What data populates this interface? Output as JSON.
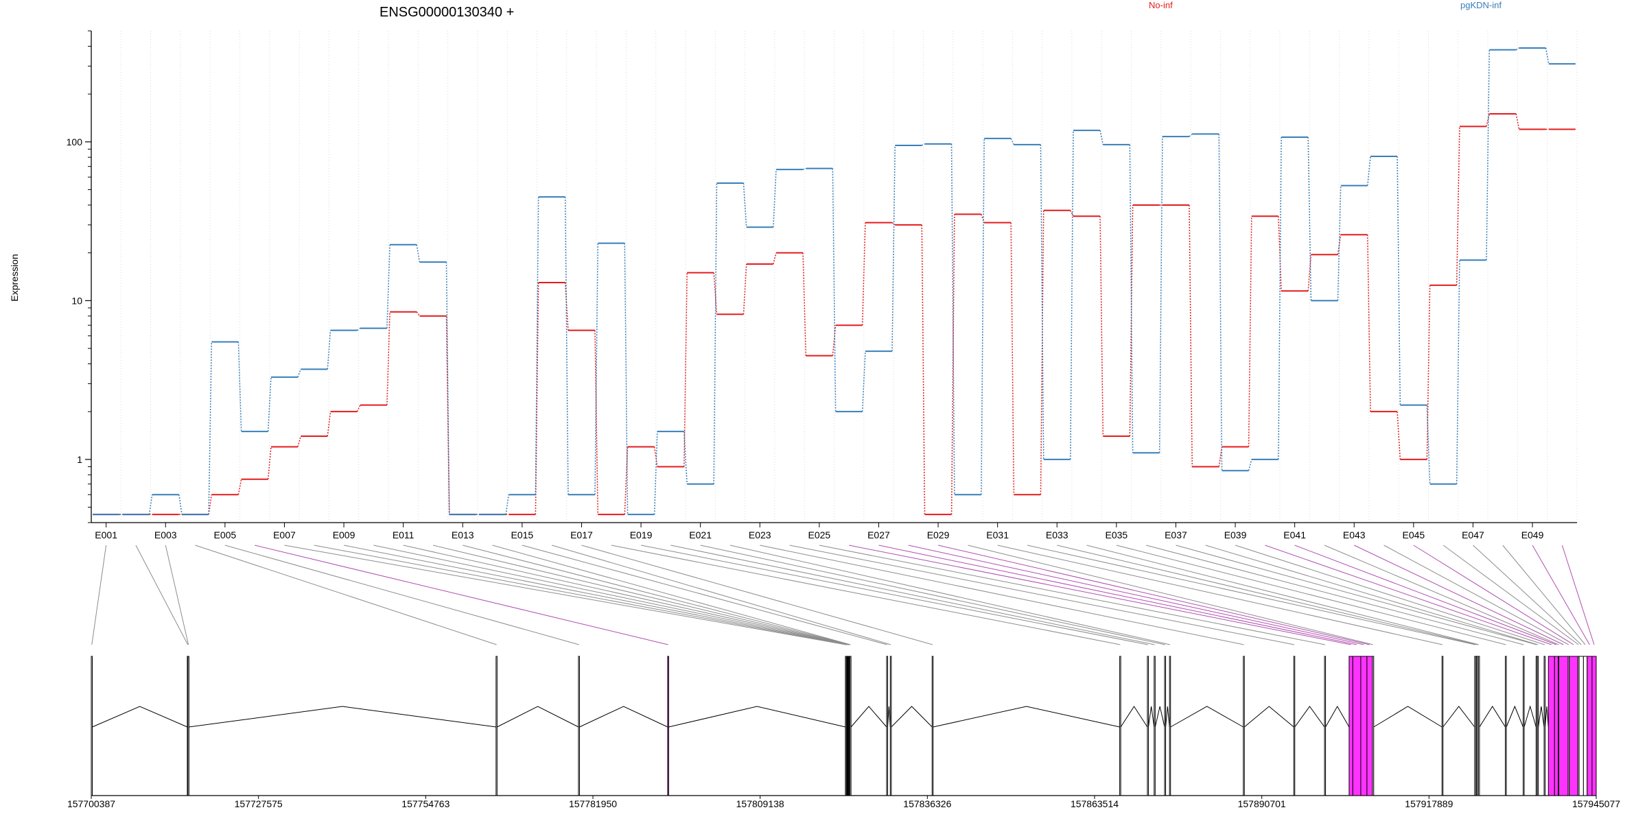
{
  "chart_data": {
    "type": "line",
    "title": "ENSG00000130340 +",
    "ylabel": "Expression",
    "y_scale": "log",
    "ylim": [
      0.4,
      500
    ],
    "y_ticks": [
      1,
      10,
      100
    ],
    "y_tick_labels": [
      "1",
      "10",
      "100"
    ],
    "grid": "vertical dotted lines",
    "legend_placement": "top",
    "categories": [
      "E001",
      "E002",
      "E003",
      "E004",
      "E005",
      "E006",
      "E007",
      "E008",
      "E009",
      "E010",
      "E011",
      "E012",
      "E013",
      "E014",
      "E015",
      "E016",
      "E017",
      "E018",
      "E019",
      "E020",
      "E021",
      "E022",
      "E023",
      "E024",
      "E025",
      "E026",
      "E027",
      "E028",
      "E029",
      "E030",
      "E031",
      "E032",
      "E033",
      "E034",
      "E035",
      "E036",
      "E037",
      "E038",
      "E039",
      "E040",
      "E041",
      "E042",
      "E043",
      "E044",
      "E045",
      "E046",
      "E047",
      "E048",
      "E049",
      "E050"
    ],
    "x_tick_labels": [
      "E001",
      "E003",
      "E005",
      "E007",
      "E009",
      "E011",
      "E013",
      "E015",
      "E017",
      "E019",
      "E021",
      "E023",
      "E025",
      "E027",
      "E029",
      "E031",
      "E033",
      "E035",
      "E037",
      "E039",
      "E041",
      "E043",
      "E045",
      "E047",
      "E049"
    ],
    "series": [
      {
        "name": "No-inf",
        "color": "#e41a1c",
        "values": [
          0.45,
          0.45,
          0.45,
          0.45,
          0.6,
          0.75,
          1.2,
          1.4,
          2.0,
          2.2,
          8.5,
          8.0,
          0.45,
          0.45,
          0.45,
          13.0,
          6.5,
          0.45,
          1.2,
          0.9,
          15.0,
          8.2,
          17.0,
          20.0,
          4.5,
          7.0,
          31.0,
          30.0,
          0.45,
          35.0,
          31.0,
          0.6,
          37.0,
          34.0,
          1.4,
          40.0,
          40.0,
          0.9,
          1.2,
          34.0,
          11.5,
          19.5,
          26.0,
          2.0,
          1.0,
          12.5,
          125.0,
          150.0,
          120.0,
          120.0
        ]
      },
      {
        "name": "pgKDN-inf",
        "color": "#377eb8",
        "values": [
          0.45,
          0.45,
          0.6,
          0.45,
          5.5,
          1.5,
          3.3,
          3.7,
          6.5,
          6.7,
          22.5,
          17.5,
          0.45,
          0.45,
          0.6,
          45.0,
          0.6,
          23.0,
          0.45,
          1.5,
          0.7,
          55.0,
          29.0,
          67.0,
          68.0,
          2.0,
          4.8,
          95.0,
          97.0,
          0.6,
          105.0,
          96.0,
          1.0,
          118.0,
          96.0,
          1.1,
          108.0,
          112.0,
          0.85,
          1.0,
          107.0,
          10.0,
          53.0,
          81.0,
          2.2,
          0.7,
          18.0,
          380.0,
          390.0,
          310.0
        ]
      }
    ]
  },
  "gene_model": {
    "genomic_tick_labels": [
      "157700387",
      "157727575",
      "157754763",
      "157781950",
      "157809138",
      "157836326",
      "157863514",
      "157890701",
      "157917889",
      "157945077"
    ],
    "genomic_ticks": [
      157700387,
      157727575,
      157754763,
      157781950,
      157809138,
      157836326,
      157863514,
      157890701,
      157917889,
      157945077
    ],
    "highlight_color": "#ff33ff",
    "link_color": "#8c8c8c",
    "highlight_link_color": "#b04db0",
    "exons": [
      {
        "id": "E001",
        "start": 157700387,
        "end": 157700500
      },
      {
        "id": "E002",
        "start": 157716000,
        "end": 157716100
      },
      {
        "id": "E003",
        "start": 157716100,
        "end": 157716200
      },
      {
        "id": "E004",
        "start": 157766200,
        "end": 157766300
      },
      {
        "id": "E005",
        "start": 157779600,
        "end": 157779700
      },
      {
        "id": "E006",
        "start": 157794100,
        "end": 157794250,
        "highlight": true
      },
      {
        "id": "E007",
        "start": 157823000,
        "end": 157823150
      },
      {
        "id": "E008",
        "start": 157823150,
        "end": 157823250
      },
      {
        "id": "E009",
        "start": 157823250,
        "end": 157823350
      },
      {
        "id": "E010",
        "start": 157823350,
        "end": 157823450
      },
      {
        "id": "E011",
        "start": 157823450,
        "end": 157823550
      },
      {
        "id": "E012",
        "start": 157823550,
        "end": 157823650
      },
      {
        "id": "E013",
        "start": 157823650,
        "end": 157823750
      },
      {
        "id": "E014",
        "start": 157823750,
        "end": 157823850
      },
      {
        "id": "E015",
        "start": 157829700,
        "end": 157829800
      },
      {
        "id": "E016",
        "start": 157830300,
        "end": 157830400
      },
      {
        "id": "E017",
        "start": 157837100,
        "end": 157837200
      },
      {
        "id": "E018",
        "start": 157867600,
        "end": 157867700
      },
      {
        "id": "E019",
        "start": 157872100,
        "end": 157872200
      },
      {
        "id": "E020",
        "start": 157873200,
        "end": 157873300
      },
      {
        "id": "E021",
        "start": 157874900,
        "end": 157875000
      },
      {
        "id": "E022",
        "start": 157875700,
        "end": 157875800
      },
      {
        "id": "E023",
        "start": 157887700,
        "end": 157887800
      },
      {
        "id": "E024",
        "start": 157895900,
        "end": 157896000
      },
      {
        "id": "E025",
        "start": 157900900,
        "end": 157901000
      },
      {
        "id": "E026",
        "start": 157904900,
        "end": 157905500,
        "highlight": true
      },
      {
        "id": "E027",
        "start": 157905500,
        "end": 157906800,
        "highlight": true
      },
      {
        "id": "E028",
        "start": 157906800,
        "end": 157907800,
        "highlight": true
      },
      {
        "id": "E029",
        "start": 157907800,
        "end": 157908700,
        "highlight": true
      },
      {
        "id": "E030",
        "start": 157908700,
        "end": 157908900
      },
      {
        "id": "E031",
        "start": 157920000,
        "end": 157920100
      },
      {
        "id": "E032",
        "start": 157925300,
        "end": 157925500
      },
      {
        "id": "E033",
        "start": 157925600,
        "end": 157925800
      },
      {
        "id": "E034",
        "start": 157925900,
        "end": 157926100
      },
      {
        "id": "E035",
        "start": 157930300,
        "end": 157930400
      },
      {
        "id": "E036",
        "start": 157933200,
        "end": 157933300
      },
      {
        "id": "E037",
        "start": 157935300,
        "end": 157935400
      },
      {
        "id": "E038",
        "start": 157935500,
        "end": 157935600
      },
      {
        "id": "E039",
        "start": 157936600,
        "end": 157936700
      },
      {
        "id": "E040",
        "start": 157937300,
        "end": 157938300,
        "highlight": true
      },
      {
        "id": "E041",
        "start": 157938300,
        "end": 157938900,
        "highlight": true
      },
      {
        "id": "E042",
        "start": 157938900,
        "end": 157939000
      },
      {
        "id": "E043",
        "start": 157939000,
        "end": 157940500,
        "highlight": true
      },
      {
        "id": "E044",
        "start": 157940500,
        "end": 157940700
      },
      {
        "id": "E045",
        "start": 157940700,
        "end": 157942100,
        "highlight": true
      },
      {
        "id": "E046",
        "start": 157942100,
        "end": 157942300
      },
      {
        "id": "E047",
        "start": 157942300,
        "end": 157943000
      },
      {
        "id": "E048",
        "start": 157943000,
        "end": 157943600
      },
      {
        "id": "E049",
        "start": 157943600,
        "end": 157944400,
        "highlight": true
      },
      {
        "id": "E050",
        "start": 157944400,
        "end": 157945077,
        "highlight": true
      }
    ]
  }
}
